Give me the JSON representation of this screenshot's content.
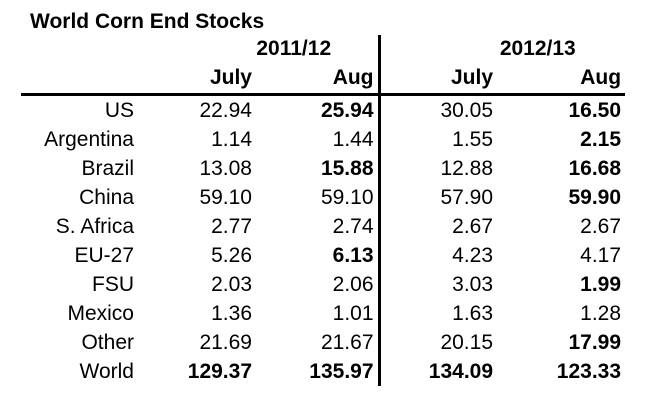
{
  "title": "World Corn End Stocks",
  "colors": {
    "text": "#000000",
    "background": "#ffffff",
    "rule": "#000000"
  },
  "chart_data": {
    "type": "table",
    "title": "World Corn End Stocks",
    "column_groups": [
      "2011/12",
      "2012/13"
    ],
    "sub_headers": [
      "July",
      "Aug",
      "July",
      "Aug"
    ],
    "columns": [
      "2011/12 July",
      "2011/12 Aug",
      "2012/13 July",
      "2012/13 Aug"
    ],
    "rows": [
      {
        "label": "US",
        "bold_label": false,
        "values": [
          "22.94",
          "25.94",
          "30.05",
          "16.50"
        ],
        "bold": [
          false,
          true,
          false,
          true
        ]
      },
      {
        "label": "Argentina",
        "bold_label": false,
        "values": [
          "1.14",
          "1.44",
          "1.55",
          "2.15"
        ],
        "bold": [
          false,
          false,
          false,
          true
        ]
      },
      {
        "label": "Brazil",
        "bold_label": false,
        "values": [
          "13.08",
          "15.88",
          "12.88",
          "16.68"
        ],
        "bold": [
          false,
          true,
          false,
          true
        ]
      },
      {
        "label": "China",
        "bold_label": false,
        "values": [
          "59.10",
          "59.10",
          "57.90",
          "59.90"
        ],
        "bold": [
          false,
          false,
          false,
          true
        ]
      },
      {
        "label": "S. Africa",
        "bold_label": false,
        "values": [
          "2.77",
          "2.74",
          "2.67",
          "2.67"
        ],
        "bold": [
          false,
          false,
          false,
          false
        ]
      },
      {
        "label": "EU-27",
        "bold_label": false,
        "values": [
          "5.26",
          "6.13",
          "4.23",
          "4.17"
        ],
        "bold": [
          false,
          true,
          false,
          false
        ]
      },
      {
        "label": "FSU",
        "bold_label": false,
        "values": [
          "2.03",
          "2.06",
          "3.03",
          "1.99"
        ],
        "bold": [
          false,
          false,
          false,
          true
        ]
      },
      {
        "label": "Mexico",
        "bold_label": false,
        "values": [
          "1.36",
          "1.01",
          "1.63",
          "1.28"
        ],
        "bold": [
          false,
          false,
          false,
          false
        ]
      },
      {
        "label": "Other",
        "bold_label": false,
        "values": [
          "21.69",
          "21.67",
          "20.15",
          "17.99"
        ],
        "bold": [
          false,
          false,
          false,
          true
        ]
      },
      {
        "label": "World",
        "bold_label": true,
        "values": [
          "129.37",
          "135.97",
          "134.09",
          "123.33"
        ],
        "bold": [
          true,
          true,
          true,
          true
        ]
      }
    ]
  }
}
